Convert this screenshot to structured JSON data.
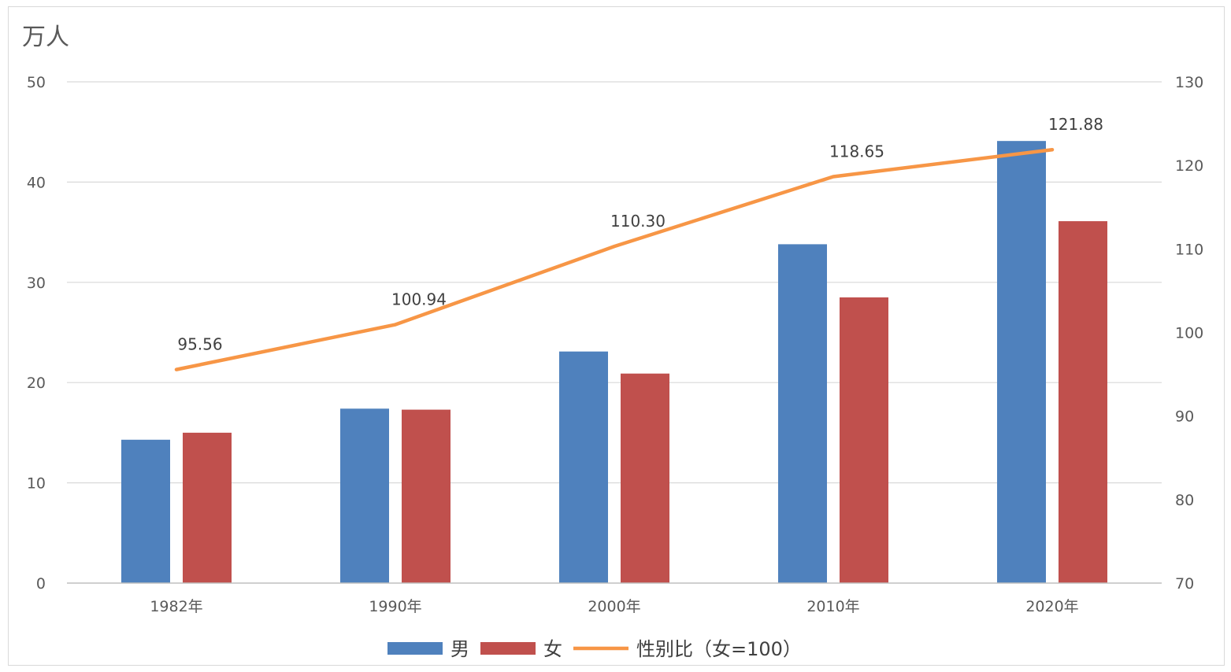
{
  "chart_data": {
    "type": "bar",
    "categories": [
      "1982年",
      "1990年",
      "2000年",
      "2010年",
      "2020年"
    ],
    "series": [
      {
        "name": "男",
        "type": "bar",
        "axis": "left",
        "color": "#4f81bd",
        "values": [
          14.3,
          17.4,
          23.1,
          33.8,
          44.1
        ]
      },
      {
        "name": "女",
        "type": "bar",
        "axis": "left",
        "color": "#c0504d",
        "values": [
          15.0,
          17.3,
          20.9,
          28.5,
          36.1
        ]
      },
      {
        "name": "性别比（女=100）",
        "type": "line",
        "axis": "right",
        "color": "#f79646",
        "values": [
          95.56,
          100.94,
          110.3,
          118.65,
          121.88
        ],
        "labels": [
          "95.56",
          "100.94",
          "110.30",
          "118.65",
          "121.88"
        ]
      }
    ],
    "y_left": {
      "label": "万人",
      "min": 0,
      "max": 50,
      "ticks": [
        "0",
        "10",
        "20",
        "30",
        "40",
        "50"
      ]
    },
    "y_right": {
      "min": 70,
      "max": 130,
      "ticks": [
        "70",
        "80",
        "90",
        "100",
        "110",
        "120",
        "130"
      ]
    },
    "grid": true,
    "legend": "bottom"
  }
}
